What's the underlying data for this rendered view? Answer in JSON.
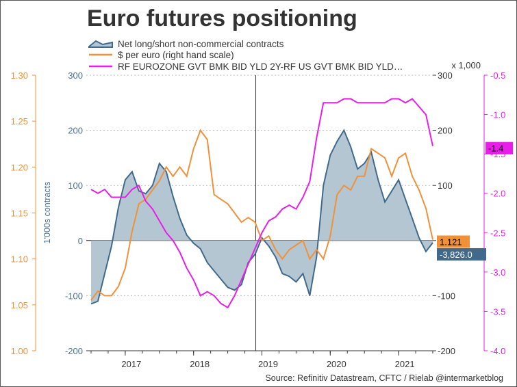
{
  "chart_data": {
    "type": "area",
    "title": "Euro futures positioning",
    "source": "Source: Refinitiv Datastream, CFTC / Rielab @intermarketblog",
    "x": [
      2016.5,
      2016.6,
      2016.7,
      2016.8,
      2016.9,
      2017.0,
      2017.1,
      2017.2,
      2017.3,
      2017.4,
      2017.5,
      2017.6,
      2017.7,
      2017.8,
      2017.9,
      2018.0,
      2018.1,
      2018.2,
      2018.3,
      2018.4,
      2018.5,
      2018.6,
      2018.7,
      2018.8,
      2018.9,
      2019.0,
      2019.1,
      2019.2,
      2019.3,
      2019.4,
      2019.5,
      2019.6,
      2019.7,
      2019.8,
      2019.9,
      2020.0,
      2020.1,
      2020.2,
      2020.3,
      2020.4,
      2020.5,
      2020.6,
      2020.7,
      2020.8,
      2020.9,
      2021.0,
      2021.1,
      2021.2,
      2021.3,
      2021.4,
      2021.5
    ],
    "xlim": [
      2016.43,
      2021.5
    ],
    "x_ticks": [
      "2017",
      "2018",
      "2019",
      "2020",
      "2021"
    ],
    "x_tick_values": [
      2017,
      2018,
      2019,
      2020,
      2021
    ],
    "vline_x": 2018.91,
    "axes": {
      "left_outer": {
        "ticks": [
          "1.30",
          "1.25",
          "1.20",
          "1.15",
          "1.10",
          "1.05",
          "1.00"
        ],
        "range": [
          1.0,
          1.3
        ],
        "color": "#f0913a"
      },
      "left_inner": {
        "label": "1'000s contracts",
        "ticks": [
          "300",
          "200",
          "100",
          "0",
          "-100",
          "-200"
        ],
        "range": [
          -200,
          300
        ],
        "color": "#4a7191"
      },
      "right_inner": {
        "unit": "x 1,000",
        "ticks": [
          "300",
          "200",
          "100",
          "0",
          "-100",
          "-200"
        ],
        "range": [
          -200,
          300
        ],
        "color": "#333333"
      },
      "right_outer": {
        "ticks": [
          "-0.5",
          "-1.0",
          "-1.5",
          "-2.0",
          "-2.5",
          "-3.0",
          "-3.5",
          "-4.0"
        ],
        "range": [
          -4.0,
          -0.5
        ],
        "color": "#e81ee8"
      }
    },
    "series": [
      {
        "name": "Net long/short non-commercial contracts",
        "axis": "left_inner",
        "style": "area",
        "color": "#3f6a8c",
        "fill": "#b5c6d3",
        "last_label": "-3,826.0",
        "values": [
          -115,
          -110,
          -60,
          -10,
          60,
          110,
          125,
          90,
          85,
          100,
          140,
          125,
          80,
          40,
          10,
          -5,
          -15,
          -40,
          -55,
          -70,
          -85,
          -90,
          -80,
          -40,
          -25,
          5,
          -10,
          -30,
          -60,
          -65,
          -75,
          -60,
          -100,
          -30,
          100,
          155,
          180,
          200,
          170,
          130,
          140,
          160,
          110,
          70,
          90,
          110,
          75,
          40,
          5,
          -20,
          -4
        ]
      },
      {
        "name": "$ per euro (right hand scale)",
        "axis": "left_outer",
        "style": "line",
        "color": "#f0913a",
        "last_label": "1.121",
        "values": [
          1.055,
          1.065,
          1.06,
          1.06,
          1.07,
          1.09,
          1.13,
          1.16,
          1.165,
          1.175,
          1.185,
          1.2,
          1.19,
          1.2,
          1.19,
          1.22,
          1.24,
          1.23,
          1.17,
          1.165,
          1.16,
          1.15,
          1.14,
          1.145,
          1.14,
          1.12,
          1.125,
          1.11,
          1.1,
          1.11,
          1.115,
          1.12,
          1.1,
          1.11,
          1.1,
          1.125,
          1.17,
          1.18,
          1.175,
          1.19,
          1.19,
          1.22,
          1.215,
          1.21,
          1.19,
          1.21,
          1.215,
          1.19,
          1.175,
          1.155,
          1.121
        ]
      },
      {
        "name": "RF EUROZONE GVT BMK BID YLD 2Y-RF US GVT BMK BID YLD…",
        "axis": "right_outer",
        "style": "line",
        "color": "#e81ee8",
        "last_label": "-1.4",
        "values": [
          -1.95,
          -2.0,
          -1.95,
          -2.05,
          -2.05,
          -2.05,
          -1.95,
          -1.9,
          -2.1,
          -2.2,
          -2.35,
          -2.5,
          -2.6,
          -2.75,
          -2.95,
          -3.1,
          -3.3,
          -3.25,
          -3.3,
          -3.4,
          -3.45,
          -3.3,
          -3.1,
          -2.9,
          -2.7,
          -2.5,
          -2.35,
          -2.3,
          -2.2,
          -2.15,
          -2.2,
          -2.05,
          -1.85,
          -1.3,
          -0.85,
          -0.85,
          -0.85,
          -0.8,
          -0.8,
          -0.85,
          -0.85,
          -0.85,
          -0.85,
          -0.85,
          -0.8,
          -0.8,
          -0.85,
          -0.8,
          -0.9,
          -1.0,
          -1.4
        ]
      }
    ],
    "grid": true,
    "legend_placement": "top-left"
  }
}
